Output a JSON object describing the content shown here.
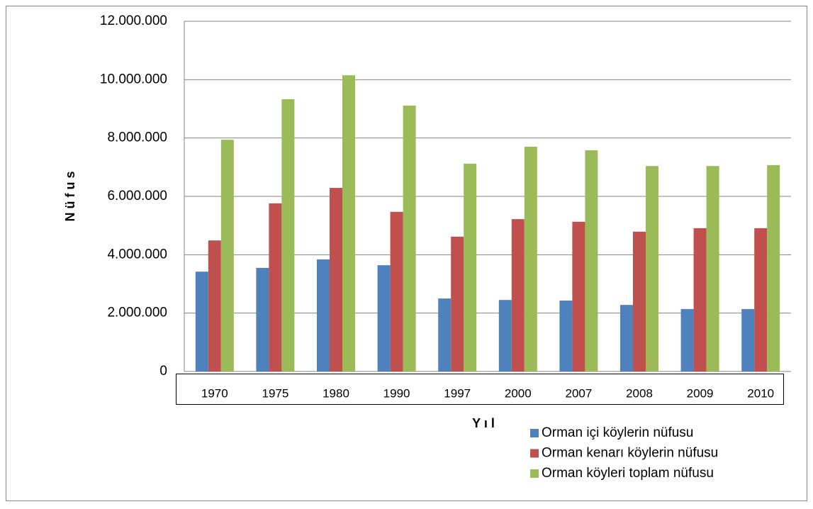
{
  "chart_data": {
    "type": "bar",
    "categories": [
      "1970",
      "1975",
      "1980",
      "1990",
      "1997",
      "2000",
      "2007",
      "2008",
      "2009",
      "2010"
    ],
    "series": [
      {
        "name": "Orman içi köylerin nüfusu",
        "color": "#4f81bd",
        "values": [
          3420000,
          3550000,
          3840000,
          3640000,
          2500000,
          2450000,
          2430000,
          2280000,
          2140000,
          2140000
        ]
      },
      {
        "name": "Orman kenarı köylerin nüfusu",
        "color": "#c0504d",
        "values": [
          4490000,
          5760000,
          6290000,
          5470000,
          4620000,
          5220000,
          5130000,
          4790000,
          4910000,
          4910000
        ]
      },
      {
        "name": "Orman köyleri toplam nüfusu",
        "color": "#9bbb59",
        "values": [
          7940000,
          9330000,
          10150000,
          9110000,
          7120000,
          7700000,
          7580000,
          7040000,
          7040000,
          7070000
        ]
      }
    ],
    "ylabel": "N ü f u s",
    "xlabel": "Y ı l",
    "ylim": [
      0,
      12000000
    ],
    "yticks": [
      0,
      {
        "value": 2000000,
        "label": "2.000.000"
      },
      {
        "value": 4000000,
        "label": "4.000.000"
      },
      {
        "value": 6000000,
        "label": "6.000.000"
      },
      {
        "value": 8000000,
        "label": "8.000.000"
      },
      {
        "value": 10000000,
        "label": "10.000.000"
      },
      {
        "value": 12000000,
        "label": "12.000.000"
      }
    ],
    "grid": true
  }
}
